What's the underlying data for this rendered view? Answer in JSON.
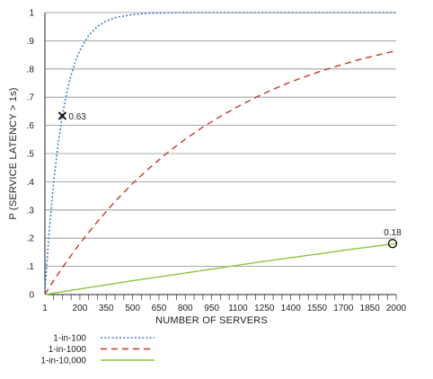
{
  "chart_data": {
    "type": "line",
    "xlabel": "NUMBER OF SERVERS",
    "ylabel": "P (SERVICE LATENCY > 1s)",
    "xlim": [
      1,
      2000
    ],
    "ylim": [
      0,
      1
    ],
    "x_ticks": [
      "1",
      "200",
      "350",
      "500",
      "650",
      "800",
      "950",
      "1100",
      "1250",
      "1400",
      "1550",
      "1700",
      "1850",
      "2000"
    ],
    "y_ticks": [
      "0",
      ".1",
      ".2",
      ".3",
      ".4",
      ".5",
      ".6",
      ".7",
      ".8",
      ".9",
      "1"
    ],
    "grid": true,
    "legend_position": "bottom-left",
    "series": [
      {
        "name": "1-in-100",
        "color": "#4a7fc1",
        "style": "dotted",
        "x": [
          1,
          25,
          50,
          75,
          100,
          125,
          150,
          175,
          200,
          250,
          300,
          350,
          400,
          500,
          600,
          800,
          1000,
          1250,
          1500,
          1750,
          2000
        ],
        "y": [
          0.01,
          0.222,
          0.395,
          0.529,
          0.634,
          0.716,
          0.779,
          0.828,
          0.866,
          0.919,
          0.951,
          0.97,
          0.982,
          0.993,
          0.998,
          1.0,
          1.0,
          1.0,
          1.0,
          1.0,
          1.0
        ]
      },
      {
        "name": "1-in-1000",
        "color": "#c0392b",
        "style": "dashed",
        "x": [
          1,
          50,
          100,
          150,
          200,
          300,
          400,
          500,
          600,
          700,
          800,
          900,
          1000,
          1100,
          1200,
          1300,
          1400,
          1500,
          1600,
          1700,
          1800,
          1900,
          2000
        ],
        "y": [
          0.001,
          0.049,
          0.095,
          0.139,
          0.181,
          0.259,
          0.33,
          0.394,
          0.451,
          0.504,
          0.551,
          0.594,
          0.632,
          0.667,
          0.699,
          0.728,
          0.754,
          0.777,
          0.798,
          0.817,
          0.835,
          0.85,
          0.865
        ]
      },
      {
        "name": "1-in-10,000",
        "color": "#8cc63f",
        "style": "solid",
        "x": [
          1,
          250,
          500,
          750,
          1000,
          1250,
          1500,
          1750,
          2000
        ],
        "y": [
          0.0,
          0.025,
          0.049,
          0.072,
          0.095,
          0.118,
          0.139,
          0.161,
          0.181
        ]
      }
    ],
    "annotations": [
      {
        "label": "0.63",
        "x": 100,
        "y": 0.634,
        "marker": "x"
      },
      {
        "label": "0.18",
        "x": 2000,
        "y": 0.181,
        "marker": "circle"
      }
    ]
  }
}
